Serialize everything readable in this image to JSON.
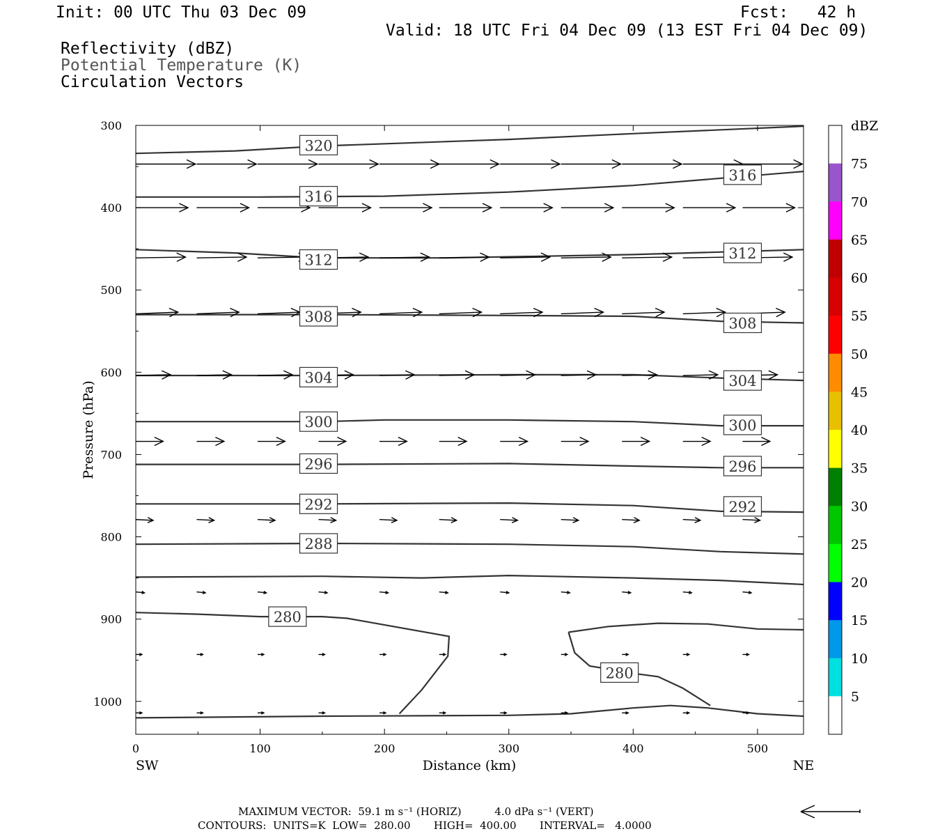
{
  "header": {
    "init": "Init: 00 UTC Thu 03 Dec 09",
    "fcst": "Fcst:   42 h",
    "valid": "Valid: 18 UTC Fri 04 Dec 09 (13 EST Fri 04 Dec 09)",
    "field1": "Reflectivity (dBZ)",
    "field2": "Potential Temperature (K)",
    "field3": "Circulation Vectors"
  },
  "footer": {
    "max_vector": "MAXIMUM VECTOR:  59.1 m s⁻¹ (HORIZ)          4.0 dPa s⁻¹ (VERT)",
    "contours": "CONTOURS:  UNITS=K  LOW=  280.00       HIGH=  400.00       INTERVAL=   4.0000"
  },
  "colors": {
    "contour": "#333333",
    "dbz_scale": [
      "#ffffff",
      "#00e0e0",
      "#0098e8",
      "#0000ff",
      "#00ff00",
      "#00c800",
      "#008000",
      "#ffff00",
      "#e8c000",
      "#ff8c00",
      "#ff0000",
      "#d80000",
      "#c00000",
      "#ff00ff",
      "#9955cc",
      "#ffffff"
    ]
  },
  "chart_data": {
    "type": "cross-section",
    "xlabel": "Distance (km)",
    "ylabel": "Pressure (hPa)",
    "xlim": [
      0,
      537
    ],
    "ylim": [
      1040,
      300
    ],
    "x_ticks": [
      0,
      100,
      200,
      300,
      400,
      500
    ],
    "y_ticks": [
      300,
      400,
      500,
      600,
      700,
      800,
      900,
      1000
    ],
    "x_end_labels": [
      "SW",
      "NE"
    ],
    "contour_labels_shown": [
      "320",
      "316",
      "312",
      "308",
      "304",
      "300",
      "296",
      "292",
      "288",
      "280"
    ],
    "isentropes": [
      {
        "theta": 320,
        "points": [
          [
            0,
            334
          ],
          [
            80,
            331
          ],
          [
            150,
            325
          ],
          [
            300,
            317
          ],
          [
            400,
            310
          ],
          [
            537,
            301
          ]
        ],
        "labels": [
          [
            147,
            324
          ]
        ]
      },
      {
        "theta": 316,
        "points": [
          [
            0,
            387
          ],
          [
            100,
            387
          ],
          [
            200,
            386
          ],
          [
            300,
            381
          ],
          [
            400,
            373
          ],
          [
            537,
            356
          ]
        ],
        "labels": [
          [
            147,
            386
          ],
          [
            488,
            360
          ]
        ]
      },
      {
        "theta": 312,
        "points": [
          [
            0,
            451
          ],
          [
            80,
            455
          ],
          [
            147,
            461
          ],
          [
            250,
            461
          ],
          [
            400,
            457
          ],
          [
            537,
            451
          ]
        ],
        "labels": [
          [
            147,
            463
          ],
          [
            488,
            455
          ]
        ]
      },
      {
        "theta": 308,
        "points": [
          [
            0,
            530
          ],
          [
            150,
            530
          ],
          [
            300,
            531
          ],
          [
            400,
            532
          ],
          [
            470,
            538
          ],
          [
            537,
            540
          ]
        ],
        "labels": [
          [
            147,
            532
          ],
          [
            488,
            540
          ]
        ]
      },
      {
        "theta": 304,
        "points": [
          [
            0,
            604
          ],
          [
            150,
            604
          ],
          [
            300,
            603
          ],
          [
            400,
            603
          ],
          [
            470,
            607
          ],
          [
            537,
            610
          ]
        ],
        "labels": [
          [
            147,
            606
          ],
          [
            488,
            610
          ]
        ]
      },
      {
        "theta": 300,
        "points": [
          [
            0,
            660
          ],
          [
            150,
            660
          ],
          [
            200,
            658
          ],
          [
            300,
            658
          ],
          [
            400,
            660
          ],
          [
            470,
            665
          ],
          [
            537,
            665
          ]
        ],
        "labels": [
          [
            147,
            660
          ],
          [
            488,
            664
          ]
        ]
      },
      {
        "theta": 296,
        "points": [
          [
            0,
            712
          ],
          [
            150,
            712
          ],
          [
            300,
            711
          ],
          [
            400,
            714
          ],
          [
            470,
            716
          ],
          [
            537,
            716
          ]
        ],
        "labels": [
          [
            147,
            711
          ],
          [
            488,
            714
          ]
        ]
      },
      {
        "theta": 292,
        "points": [
          [
            0,
            760
          ],
          [
            150,
            760
          ],
          [
            300,
            759
          ],
          [
            400,
            762
          ],
          [
            470,
            769
          ],
          [
            537,
            770
          ]
        ],
        "labels": [
          [
            147,
            760
          ],
          [
            488,
            763
          ]
        ]
      },
      {
        "theta": 288,
        "points": [
          [
            0,
            809
          ],
          [
            150,
            808
          ],
          [
            300,
            809
          ],
          [
            400,
            812
          ],
          [
            470,
            818
          ],
          [
            537,
            821
          ]
        ],
        "labels": [
          [
            147,
            808
          ]
        ]
      },
      {
        "theta": 284,
        "points": [
          [
            0,
            849
          ],
          [
            150,
            848
          ],
          [
            230,
            850
          ],
          [
            300,
            847
          ],
          [
            400,
            850
          ],
          [
            470,
            853
          ],
          [
            537,
            858
          ]
        ],
        "labels": []
      },
      {
        "theta": 280,
        "points": [
          [
            0,
            892
          ],
          [
            50,
            894
          ],
          [
            100,
            897
          ],
          [
            150,
            897
          ],
          [
            170,
            899
          ],
          [
            252,
            921
          ],
          [
            251,
            945
          ],
          [
            230,
            986
          ],
          [
            212,
            1015
          ]
        ],
        "labels": [
          [
            122,
            897
          ]
        ]
      },
      {
        "theta": 280,
        "points": [
          [
            348,
            916
          ],
          [
            353,
            941
          ],
          [
            365,
            957
          ],
          [
            390,
            963
          ],
          [
            400,
            966
          ],
          [
            420,
            970
          ],
          [
            440,
            984
          ],
          [
            462,
            1005
          ]
        ],
        "labels": [
          [
            389,
            965
          ]
        ]
      },
      {
        "theta": 280,
        "points": [
          [
            348,
            916
          ],
          [
            380,
            909
          ],
          [
            420,
            905
          ],
          [
            460,
            906
          ],
          [
            500,
            912
          ],
          [
            537,
            913
          ]
        ],
        "labels": []
      },
      {
        "theta": 280,
        "points": [
          [
            0,
            1020
          ],
          [
            150,
            1018
          ],
          [
            300,
            1017
          ],
          [
            350,
            1015
          ],
          [
            400,
            1008
          ],
          [
            430,
            1005
          ],
          [
            460,
            1008
          ],
          [
            500,
            1015
          ],
          [
            537,
            1018
          ]
        ],
        "labels": []
      }
    ],
    "vectors": {
      "x_positions": [
        0,
        49,
        98,
        147,
        196,
        244,
        293,
        342,
        391,
        440,
        488
      ],
      "rows": [
        {
          "p": 347,
          "len_km": 48,
          "tilt_hpa": 0
        },
        {
          "p": 400,
          "len_km": 42,
          "tilt_hpa": 0
        },
        {
          "p": 461,
          "len_km": 40,
          "tilt_hpa": -1
        },
        {
          "p": 529,
          "len_km": 34,
          "tilt_hpa": -2
        },
        {
          "p": 604,
          "len_km": 28,
          "tilt_hpa": -1
        },
        {
          "p": 684,
          "len_km": 22,
          "tilt_hpa": 0
        },
        {
          "p": 779,
          "len_km": 14,
          "tilt_hpa": 1
        },
        {
          "p": 867,
          "len_km": 7,
          "tilt_hpa": 1
        },
        {
          "p": 943,
          "len_km": 5,
          "tilt_hpa": 0
        },
        {
          "p": 1014,
          "len_km": 5,
          "tilt_hpa": 0
        }
      ]
    },
    "colorbar": {
      "label": "dBZ",
      "tick_values": [
        "5",
        "10",
        "15",
        "20",
        "25",
        "30",
        "35",
        "40",
        "45",
        "50",
        "55",
        "60",
        "65",
        "70",
        "75"
      ]
    }
  }
}
